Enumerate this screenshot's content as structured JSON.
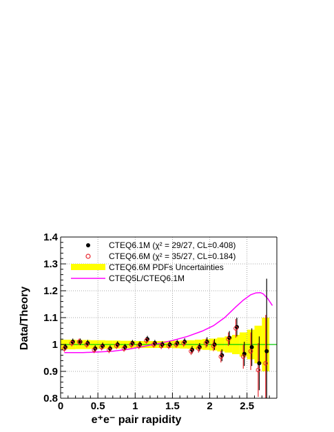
{
  "chart_data": {
    "type": "scatter",
    "title": "",
    "xlabel": "e⁺e⁻ pair rapidity",
    "ylabel": "Data/Theory",
    "xlim": [
      0,
      2.9
    ],
    "ylim": [
      0.8,
      1.4
    ],
    "grid": true,
    "legend_position": "top",
    "x_ticks": [
      0,
      0.5,
      1,
      1.5,
      2,
      2.5
    ],
    "y_ticks": [
      0.8,
      0.9,
      1,
      1.1,
      1.2,
      1.3,
      1.4
    ],
    "x_tick_labels": [
      "0",
      "0.5",
      "1",
      "1.5",
      "2",
      "2.5"
    ],
    "y_tick_labels": [
      "0.8",
      "0.9",
      "1",
      "1.1",
      "1.2",
      "1.3",
      "1.4"
    ],
    "reference_line": 1.0,
    "colors": {
      "cteq61m": "#000000",
      "cteq66m": "#e8242c",
      "pdf_band": "#ffff00",
      "ratio_curve": "#ff00ff",
      "reference_line": "#00cc00",
      "grid": "#888888"
    },
    "legend": [
      "CTEQ6.1M (χ² = 29/27, CL=0.408)",
      "CTEQ6.6M (χ² = 35/27, CL=0.184)",
      "CTEQ6.6M PDFs Uncertainties",
      "CTEQ5L/CTEQ6.1M"
    ],
    "series": [
      {
        "name": "CTEQ6.1M (χ² = 29/27, CL=0.408)",
        "marker": "filled-circle",
        "x": [
          0.05,
          0.15,
          0.25,
          0.35,
          0.45,
          0.55,
          0.65,
          0.75,
          0.85,
          0.95,
          1.05,
          1.15,
          1.25,
          1.35,
          1.45,
          1.55,
          1.65,
          1.75,
          1.85,
          1.95,
          2.05,
          2.15,
          2.25,
          2.35,
          2.45,
          2.55,
          2.65,
          2.75
        ],
        "y": [
          0.99,
          1.01,
          1.01,
          1.005,
          0.985,
          0.995,
          0.985,
          1.0,
          0.99,
          1.005,
          1.0,
          1.02,
          1.005,
          1.0,
          1.0,
          1.005,
          1.01,
          0.98,
          0.99,
          1.01,
          1.0,
          0.96,
          1.025,
          1.065,
          0.965,
          0.99,
          0.93,
          0.975
        ],
        "error": [
          0.012,
          0.012,
          0.012,
          0.012,
          0.012,
          0.012,
          0.012,
          0.012,
          0.012,
          0.012,
          0.012,
          0.012,
          0.012,
          0.012,
          0.012,
          0.012,
          0.013,
          0.014,
          0.015,
          0.017,
          0.02,
          0.022,
          0.025,
          0.035,
          0.045,
          0.07,
          0.1,
          0.27
        ]
      },
      {
        "name": "CTEQ6.6M (χ² = 35/27, CL=0.184)",
        "marker": "open-circle",
        "x": [
          0.05,
          0.15,
          0.25,
          0.35,
          0.45,
          0.55,
          0.65,
          0.75,
          0.85,
          0.95,
          1.05,
          1.15,
          1.25,
          1.35,
          1.45,
          1.55,
          1.65,
          1.75,
          1.85,
          1.95,
          2.05,
          2.15,
          2.25,
          2.35,
          2.45,
          2.55,
          2.65,
          2.75
        ],
        "y": [
          0.985,
          1.005,
          1.01,
          1.0,
          0.98,
          0.99,
          0.98,
          0.995,
          0.985,
          1.0,
          0.995,
          1.015,
          1.0,
          0.995,
          0.995,
          1.0,
          1.005,
          0.975,
          0.985,
          1.005,
          0.995,
          0.955,
          1.02,
          1.06,
          0.955,
          0.975,
          0.905,
          0.93
        ],
        "error": [
          0.012,
          0.012,
          0.012,
          0.012,
          0.012,
          0.012,
          0.012,
          0.012,
          0.012,
          0.012,
          0.012,
          0.012,
          0.012,
          0.012,
          0.012,
          0.012,
          0.013,
          0.014,
          0.015,
          0.017,
          0.02,
          0.022,
          0.025,
          0.035,
          0.045,
          0.07,
          0.1,
          0.18
        ]
      }
    ],
    "band": {
      "name": "CTEQ6.6M PDFs Uncertainties",
      "x_edges": [
        0,
        0.1,
        0.2,
        0.3,
        0.4,
        0.5,
        0.6,
        0.7,
        0.8,
        0.9,
        1.0,
        1.1,
        1.2,
        1.3,
        1.4,
        1.5,
        1.6,
        1.7,
        1.8,
        1.9,
        2.0,
        2.1,
        2.2,
        2.3,
        2.4,
        2.5,
        2.6,
        2.7,
        2.8
      ],
      "half_width": [
        0.018,
        0.018,
        0.017,
        0.017,
        0.016,
        0.016,
        0.015,
        0.015,
        0.014,
        0.014,
        0.013,
        0.013,
        0.013,
        0.013,
        0.013,
        0.014,
        0.015,
        0.016,
        0.018,
        0.02,
        0.022,
        0.026,
        0.03,
        0.036,
        0.045,
        0.055,
        0.07,
        0.1
      ]
    },
    "curve": {
      "name": "CTEQ5L/CTEQ6.1M",
      "x": [
        0.05,
        0.3,
        0.5,
        0.7,
        0.9,
        1.1,
        1.3,
        1.5,
        1.7,
        1.9,
        2.05,
        2.2,
        2.35,
        2.45,
        2.55,
        2.62,
        2.68,
        2.72,
        2.78,
        2.84
      ],
      "y": [
        0.97,
        0.97,
        0.972,
        0.975,
        0.982,
        0.992,
        1.003,
        1.015,
        1.03,
        1.05,
        1.07,
        1.1,
        1.14,
        1.165,
        1.185,
        1.192,
        1.193,
        1.188,
        1.17,
        1.145
      ]
    }
  }
}
